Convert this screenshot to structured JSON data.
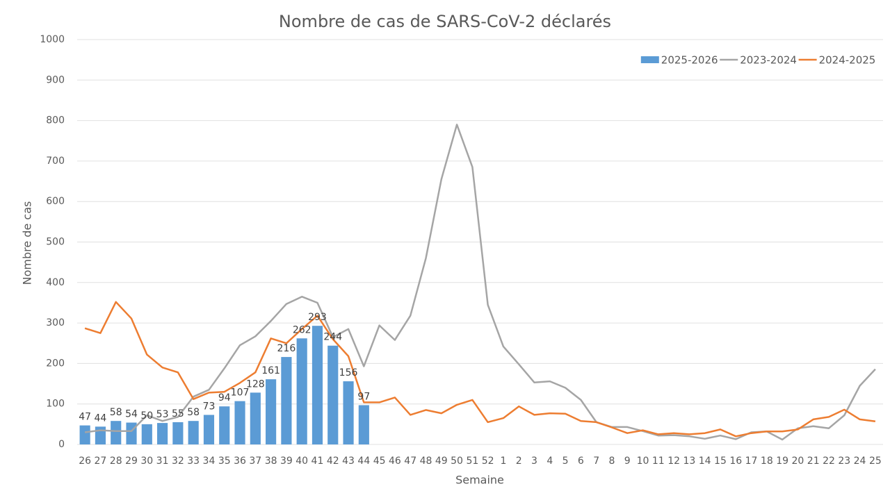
{
  "chart_data": {
    "type": "bar_line",
    "title": "Nombre de cas de SARS-CoV-2 déclarés",
    "ylabel": "Nombre de cas",
    "xlabel": "Semaine",
    "categories": [
      "26",
      "27",
      "28",
      "29",
      "30",
      "31",
      "32",
      "33",
      "34",
      "35",
      "36",
      "37",
      "38",
      "39",
      "40",
      "41",
      "42",
      "43",
      "44",
      "45",
      "46",
      "47",
      "48",
      "49",
      "50",
      "51",
      "52",
      "1",
      "2",
      "3",
      "4",
      "5",
      "6",
      "7",
      "8",
      "9",
      "10",
      "11",
      "12",
      "13",
      "14",
      "15",
      "16",
      "17",
      "18",
      "19",
      "20",
      "21",
      "22",
      "23",
      "24",
      "25"
    ],
    "series": [
      {
        "name": "2025-2026",
        "type": "bar",
        "color": "#5b9bd5",
        "data_labels": true,
        "values": [
          47,
          44,
          58,
          54,
          50,
          53,
          55,
          58,
          73,
          94,
          107,
          128,
          161,
          216,
          262,
          293,
          244,
          156,
          97,
          null,
          null,
          null,
          null,
          null,
          null,
          null,
          null,
          null,
          null,
          null,
          null,
          null,
          null,
          null,
          null,
          null,
          null,
          null,
          null,
          null,
          null,
          null,
          null,
          null,
          null,
          null,
          null,
          null,
          null,
          null,
          null,
          null
        ]
      },
      {
        "name": "2023-2024",
        "type": "line",
        "color": "#a5a5a5",
        "values": [
          30,
          35,
          33,
          33,
          72,
          58,
          68,
          118,
          135,
          188,
          245,
          267,
          305,
          347,
          365,
          350,
          265,
          285,
          193,
          294,
          258,
          318,
          460,
          655,
          790,
          685,
          345,
          242,
          198,
          153,
          156,
          140,
          110,
          55,
          43,
          43,
          33,
          22,
          23,
          20,
          14,
          22,
          13,
          30,
          32,
          12,
          40,
          45,
          40,
          72,
          145,
          186
        ]
      },
      {
        "name": "2024-2025",
        "type": "line",
        "color": "#ed7d31",
        "values": [
          287,
          275,
          352,
          311,
          222,
          190,
          178,
          112,
          128,
          130,
          152,
          178,
          262,
          250,
          285,
          318,
          260,
          218,
          104,
          104,
          116,
          73,
          85,
          77,
          98,
          110,
          55,
          65,
          94,
          73,
          77,
          76,
          58,
          55,
          42,
          28,
          35,
          25,
          28,
          25,
          28,
          37,
          20,
          28,
          32,
          32,
          37,
          62,
          68,
          86,
          62,
          57
        ]
      }
    ],
    "ylim": [
      0,
      1000
    ],
    "yticks": [
      0,
      100,
      200,
      300,
      400,
      500,
      600,
      700,
      800,
      900,
      1000
    ],
    "grid": true,
    "legend": "upper right"
  }
}
